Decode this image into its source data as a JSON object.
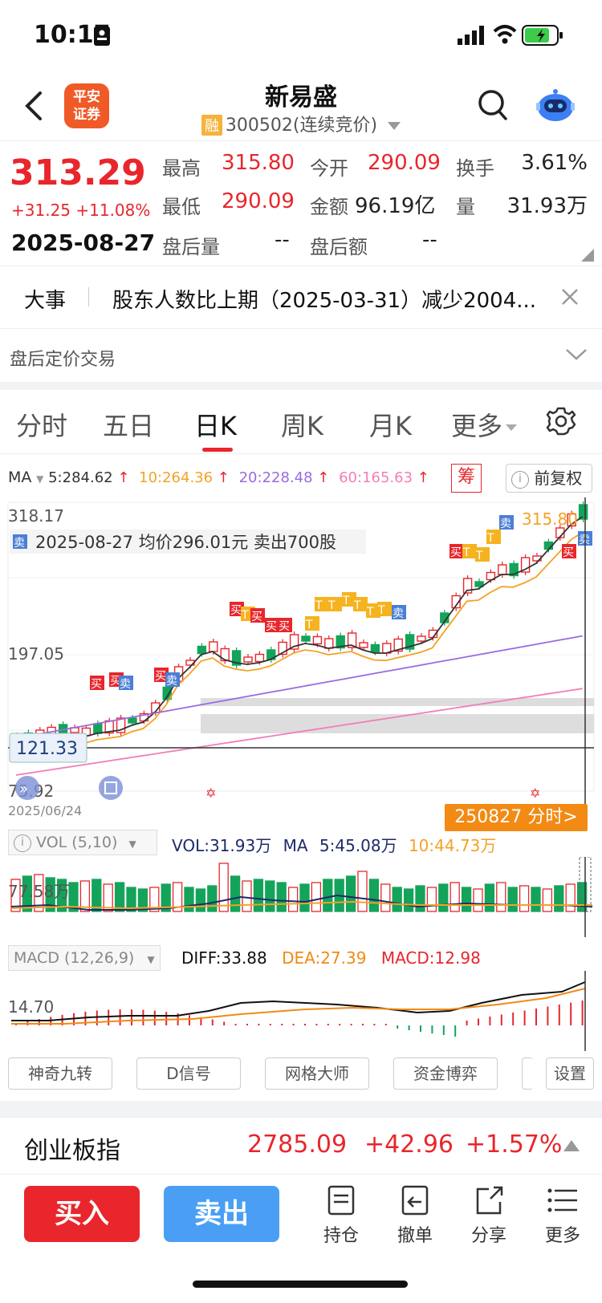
{
  "status_bar": {
    "time": "10:17"
  },
  "header": {
    "logo_text": "平安证券",
    "stock_name": "新易盛",
    "margin_tag": "融",
    "code_status": "300502(连续竞价)"
  },
  "quote": {
    "price": "313.29",
    "change": "+31.25 +11.08%",
    "date": "2025-08-27",
    "high_label": "最高",
    "high": "315.80",
    "open_label": "今开",
    "open": "290.09",
    "turnover_label": "换手",
    "turnover": "3.61%",
    "low_label": "最低",
    "low": "290.09",
    "amount_label": "金额",
    "amount": "96.19亿",
    "volume_label": "量",
    "volume": "31.93万",
    "after_vol_label": "盘后量",
    "after_vol": "--",
    "after_amt_label": "盘后额",
    "after_amt": "--"
  },
  "event": {
    "tag": "大事",
    "text": "股东人数比上期（2025-03-31）减少2004..."
  },
  "after_hours": {
    "label": "盘后定价交易"
  },
  "tabs": [
    {
      "label": "分时"
    },
    {
      "label": "五日"
    },
    {
      "label": "日K"
    },
    {
      "label": "周K"
    },
    {
      "label": "月K"
    },
    {
      "label": "更多"
    }
  ],
  "ma_bar": {
    "label": "MA",
    "ma5": "5:284.62",
    "ma10": "10:264.36",
    "ma20": "20:228.48",
    "ma60": "60:165.63",
    "chip_label": "筹",
    "adjust_label": "前复权"
  },
  "kline": {
    "price_top": "318.17",
    "price_mid": "197.05",
    "price_bottom": "75.92",
    "cursor_price": "121.33",
    "high_marker": "315.80",
    "date_left": "2025/06/24",
    "trade_note_tag": "卖",
    "trade_note": "2025-08-27 均价296.01元 卖出700股",
    "timeshare_btn": "250827 分时>",
    "buy_tag": "买",
    "sell_tag": "卖",
    "t_tag": "T"
  },
  "vol_panel": {
    "label": "VOL (5,10)",
    "vol": "VOL:31.93万",
    "ma_label": "MA",
    "ma5": "5:45.08万",
    "ma10": "10:44.73万",
    "axis": "77.58万"
  },
  "macd_panel": {
    "label": "MACD (12,26,9)",
    "diff": "DIFF:33.88",
    "dea": "DEA:27.39",
    "macd": "MACD:12.98",
    "axis": "14.70"
  },
  "indicator_buttons": [
    {
      "label": "神奇九转"
    },
    {
      "label": "D信号"
    },
    {
      "label": "网格大师"
    },
    {
      "label": "资金博弈"
    },
    {
      "label": ""
    },
    {
      "label": "设置"
    }
  ],
  "index_bar": {
    "name": "创业板指",
    "value": "2785.09",
    "change": "+42.96",
    "pct": "+1.57%"
  },
  "bottom_bar": {
    "buy": "买入",
    "sell": "卖出",
    "tools": [
      {
        "label": "持仓"
      },
      {
        "label": "撤单"
      },
      {
        "label": "分享"
      },
      {
        "label": "更多"
      }
    ]
  },
  "colors": {
    "up": "#e8262c",
    "down": "#14a35a",
    "ma5": "#333333",
    "ma10": "#f4a225",
    "ma20": "#9b6ae0",
    "ma60": "#f07fb8",
    "sell_btn": "#4a9ff5"
  }
}
